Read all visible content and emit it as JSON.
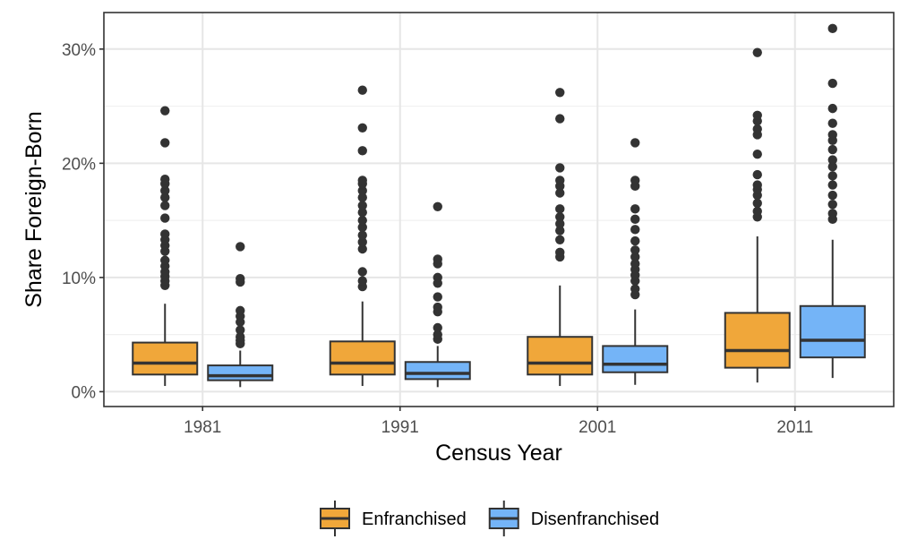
{
  "chart_data": {
    "type": "boxplot",
    "xlabel": "Census Year",
    "ylabel": "Share Foreign-Born",
    "categories": [
      "1981",
      "1991",
      "2001",
      "2011"
    ],
    "y_ticks": [
      {
        "value": 0,
        "label": "0%"
      },
      {
        "value": 10,
        "label": "10%"
      },
      {
        "value": 20,
        "label": "20%"
      },
      {
        "value": 30,
        "label": "30%"
      }
    ],
    "ylim": [
      -1.3,
      33.2
    ],
    "grid": true,
    "legend_position": "bottom",
    "series": [
      {
        "name": "Enfranchised",
        "color": "#f0a73a",
        "boxes": [
          {
            "category": "1981",
            "min": 0.5,
            "q1": 1.5,
            "median": 2.5,
            "q3": 4.3,
            "max": 7.7,
            "outliers": [
              9.3,
              9.7,
              10.1,
              10.5,
              11.0,
              11.5,
              12.3,
              12.8,
              13.3,
              13.8,
              15.2,
              16.3,
              17.0,
              17.6,
              18.2,
              18.6,
              21.8,
              24.6
            ]
          },
          {
            "category": "1991",
            "min": 0.5,
            "q1": 1.5,
            "median": 2.5,
            "q3": 4.4,
            "max": 7.9,
            "outliers": [
              9.2,
              9.7,
              10.5,
              12.5,
              13.1,
              13.7,
              14.4,
              15.0,
              15.7,
              16.3,
              17.0,
              17.6,
              18.2,
              18.5,
              21.1,
              23.1,
              26.4
            ]
          },
          {
            "category": "2001",
            "min": 0.5,
            "q1": 1.5,
            "median": 2.5,
            "q3": 4.8,
            "max": 9.3,
            "outliers": [
              11.8,
              12.2,
              13.3,
              14.1,
              14.7,
              15.3,
              16.0,
              17.4,
              18.0,
              18.5,
              19.6,
              23.9,
              26.2
            ]
          },
          {
            "category": "2011",
            "min": 0.8,
            "q1": 2.1,
            "median": 3.6,
            "q3": 6.9,
            "max": 13.6,
            "outliers": [
              15.3,
              15.8,
              16.5,
              17.2,
              17.7,
              18.1,
              19.0,
              20.8,
              22.5,
              23.0,
              23.7,
              24.2,
              29.7
            ]
          }
        ]
      },
      {
        "name": "Disenfranchised",
        "color": "#74b4f7",
        "boxes": [
          {
            "category": "1981",
            "min": 0.4,
            "q1": 1.0,
            "median": 1.4,
            "q3": 2.3,
            "max": 3.6,
            "outliers": [
              4.2,
              4.5,
              4.8,
              5.4,
              6.1,
              6.6,
              7.1,
              9.6,
              9.9,
              12.7
            ]
          },
          {
            "category": "1991",
            "min": 0.4,
            "q1": 1.1,
            "median": 1.6,
            "q3": 2.6,
            "max": 4.0,
            "outliers": [
              4.6,
              5.0,
              5.6,
              7.0,
              7.4,
              8.3,
              9.5,
              10.0,
              11.2,
              11.6,
              16.2
            ]
          },
          {
            "category": "2001",
            "min": 0.6,
            "q1": 1.7,
            "median": 2.4,
            "q3": 4.0,
            "max": 7.2,
            "outliers": [
              8.5,
              9.0,
              9.7,
              10.2,
              10.7,
              11.2,
              11.8,
              12.4,
              13.2,
              14.2,
              15.1,
              16.0,
              18.0,
              18.5,
              21.8
            ]
          },
          {
            "category": "2011",
            "min": 1.2,
            "q1": 3.0,
            "median": 4.5,
            "q3": 7.5,
            "max": 13.3,
            "outliers": [
              15.1,
              15.6,
              16.4,
              17.2,
              18.1,
              18.9,
              19.7,
              20.3,
              21.2,
              22.0,
              22.5,
              23.5,
              24.8,
              27.0,
              31.8
            ]
          }
        ]
      }
    ]
  }
}
